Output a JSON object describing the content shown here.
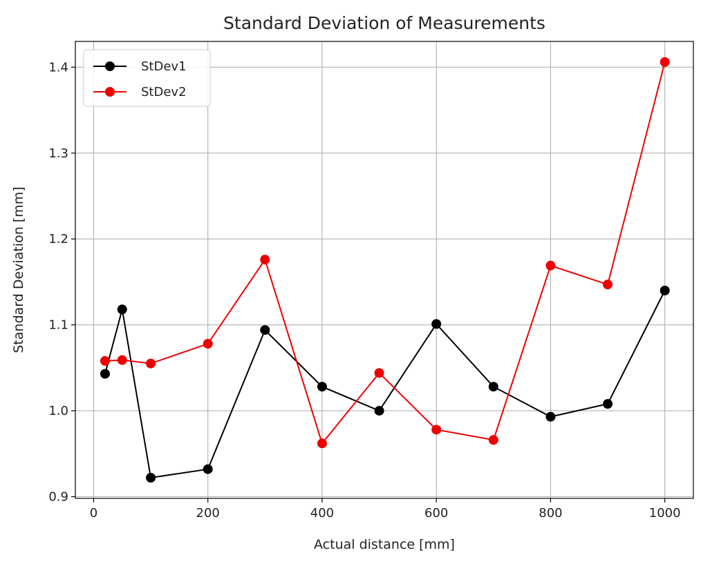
{
  "chart_data": {
    "type": "line",
    "title": "Standard Deviation of Measurements",
    "xlabel": "Actual distance [mm]",
    "ylabel": "Standard Deviation [mm]",
    "xlim": [
      -32,
      1050
    ],
    "ylim": [
      0.898,
      1.43
    ],
    "xticks": [
      0,
      200,
      400,
      600,
      800,
      1000
    ],
    "yticks": [
      0.9,
      1.0,
      1.1,
      1.2,
      1.3,
      1.4
    ],
    "ytick_labels": [
      "0.9",
      "1.0",
      "1.1",
      "1.2",
      "1.3",
      "1.4"
    ],
    "grid": true,
    "legend_position": "top-left",
    "x": [
      20,
      50,
      100,
      200,
      300,
      400,
      500,
      600,
      700,
      800,
      900,
      1000
    ],
    "series": [
      {
        "name": "StDev1",
        "color": "#000000",
        "values": [
          1.043,
          1.118,
          0.922,
          0.932,
          1.094,
          1.028,
          1.0,
          1.101,
          1.028,
          0.993,
          1.008,
          1.14
        ]
      },
      {
        "name": "StDev2",
        "color": "#ee0000",
        "values": [
          1.058,
          1.059,
          1.055,
          1.078,
          1.176,
          0.962,
          1.044,
          0.978,
          0.966,
          1.169,
          1.147,
          1.406
        ]
      }
    ]
  }
}
